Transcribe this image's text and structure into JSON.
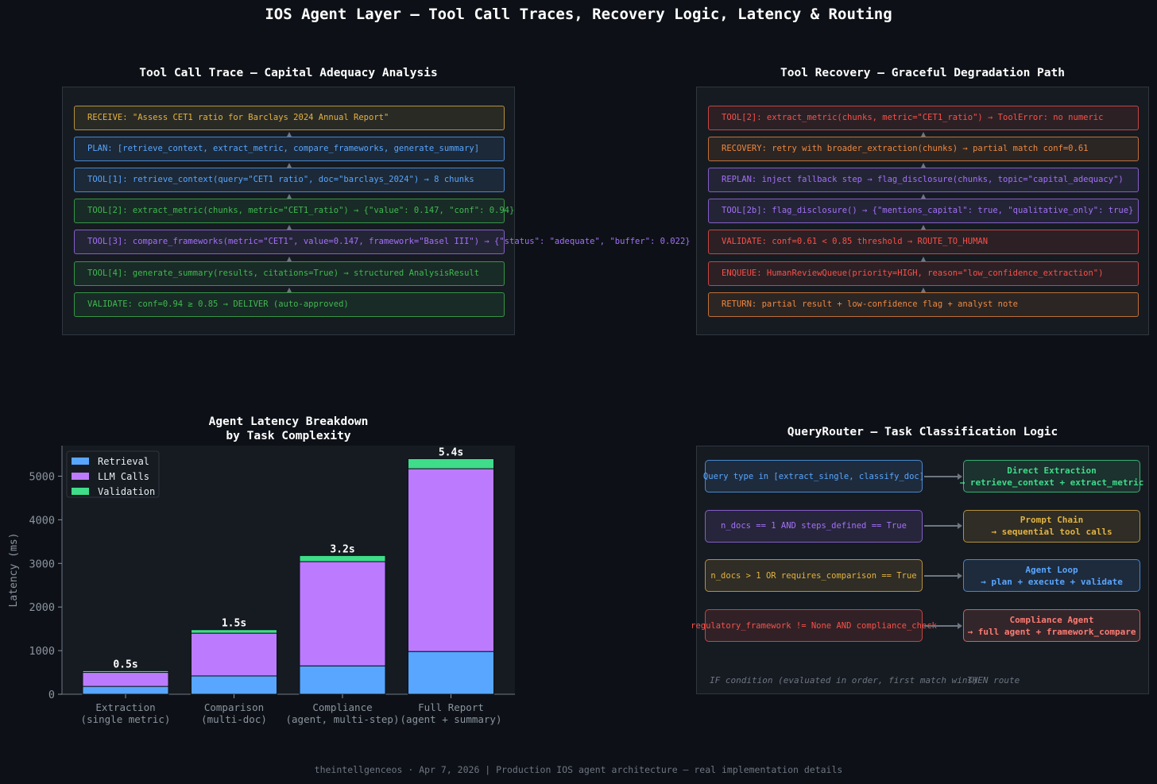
{
  "title": "IOS Agent Layer — Tool Call Traces, Recovery Logic, Latency & Routing",
  "footer": "theintellgenceos · Apr 7, 2026  |  Production IOS agent architecture — real implementation details",
  "trace_panel": {
    "title": "Tool Call Trace — Capital Adequacy Analysis",
    "steps": [
      {
        "text": "RECEIVE: \"Assess CET1 ratio for Barclays 2024 Annual Report\"",
        "color": "#e3b341"
      },
      {
        "text": "PLAN: [retrieve_context, extract_metric, compare_frameworks, generate_summary]",
        "color": "#58a6ff"
      },
      {
        "text": "TOOL[1]: retrieve_context(query=\"CET1 ratio\", doc=\"barclays_2024\") → 8 chunks",
        "color": "#58a6ff"
      },
      {
        "text": "TOOL[2]: extract_metric(chunks, metric=\"CET1_ratio\") → {\"value\": 0.147, \"conf\": 0.94}",
        "color": "#3fb950"
      },
      {
        "text": "TOOL[3]: compare_frameworks(metric=\"CET1\", value=0.147, framework=\"Basel III\") → {\"status\": \"adequate\", \"buffer\": 0.022}",
        "color": "#a371f7"
      },
      {
        "text": "TOOL[4]: generate_summary(results, citations=True) → structured AnalysisResult",
        "color": "#3fb950"
      },
      {
        "text": "VALIDATE: conf=0.94 ≥ 0.85 → DELIVER (auto-approved)",
        "color": "#3fb950"
      }
    ]
  },
  "recovery_panel": {
    "title": "Tool Recovery — Graceful Degradation Path",
    "steps": [
      {
        "text": "TOOL[2]: extract_metric(chunks, metric=\"CET1_ratio\") → ToolError: no numeric",
        "color": "#f85149"
      },
      {
        "text": "RECOVERY: retry with broader_extraction(chunks) → partial match conf=0.61",
        "color": "#f0883e"
      },
      {
        "text": "REPLAN: inject fallback step → flag_disclosure(chunks, topic=\"capital_adequacy\")",
        "color": "#a371f7"
      },
      {
        "text": "TOOL[2b]: flag_disclosure() → {\"mentions_capital\": true, \"qualitative_only\": true}",
        "color": "#a371f7"
      },
      {
        "text": "VALIDATE: conf=0.61 < 0.85 threshold → ROUTE_TO_HUMAN",
        "color": "#f85149"
      },
      {
        "text": "ENQUEUE: HumanReviewQueue(priority=HIGH, reason=\"low_confidence_extraction\")",
        "color": "#f85149"
      },
      {
        "text": "RETURN: partial result + low-confidence flag + analyst note",
        "color": "#f0883e"
      }
    ]
  },
  "latency_panel": {
    "title_line1": "Agent Latency Breakdown",
    "title_line2": "by Task Complexity"
  },
  "chart_data": {
    "type": "bar",
    "stacked": true,
    "title": "Agent Latency Breakdown by Task Complexity",
    "xlabel": "",
    "ylabel": "Latency (ms)",
    "ylim": [
      0,
      5700
    ],
    "yticks": [
      0,
      1000,
      2000,
      3000,
      4000,
      5000
    ],
    "categories": [
      "Extraction\n(single metric)",
      "Comparison\n(multi-doc)",
      "Compliance\n(agent, multi-step)",
      "Full Report\n(agent + summary)"
    ],
    "series": [
      {
        "name": "Retrieval",
        "color": "#58a6ff",
        "values": [
          180,
          420,
          650,
          980
        ]
      },
      {
        "name": "LLM Calls",
        "color": "#bc7bff",
        "values": [
          320,
          980,
          2390,
          4190
        ]
      },
      {
        "name": "Validation",
        "color": "#3fdc8a",
        "values": [
          40,
          80,
          140,
          230
        ]
      }
    ],
    "total_labels": [
      "0.5s",
      "1.5s",
      "3.2s",
      "5.4s"
    ],
    "legend_position": "top-left",
    "grid": false
  },
  "router_panel": {
    "title": "QueryRouter — Task Classification Logic",
    "rules": [
      {
        "condition": "Query type in [extract_single, classify_doc]",
        "route_line1": "Direct Extraction",
        "route_line2": "→ retrieve_context + extract_metric",
        "color": "#58a6ff",
        "route_color": "#3fdc8a"
      },
      {
        "condition": "n_docs == 1 AND steps_defined == True",
        "route_line1": "Prompt Chain",
        "route_line2": "→ sequential tool calls",
        "color": "#a371f7",
        "route_color": "#e3b341"
      },
      {
        "condition": "n_docs > 1 OR requires_comparison == True",
        "route_line1": "Agent Loop",
        "route_line2": "→ plan + execute + validate",
        "color": "#e3b341",
        "route_color": "#58a6ff"
      },
      {
        "condition": "regulatory_framework != None AND compliance_check",
        "route_line1": "Compliance Agent",
        "route_line2": "→ full agent + framework_compare",
        "color": "#f85149",
        "route_color": "#ff7b72"
      }
    ],
    "note_left": "IF condition (evaluated in order, first match wins)",
    "note_right": "THEN route"
  }
}
